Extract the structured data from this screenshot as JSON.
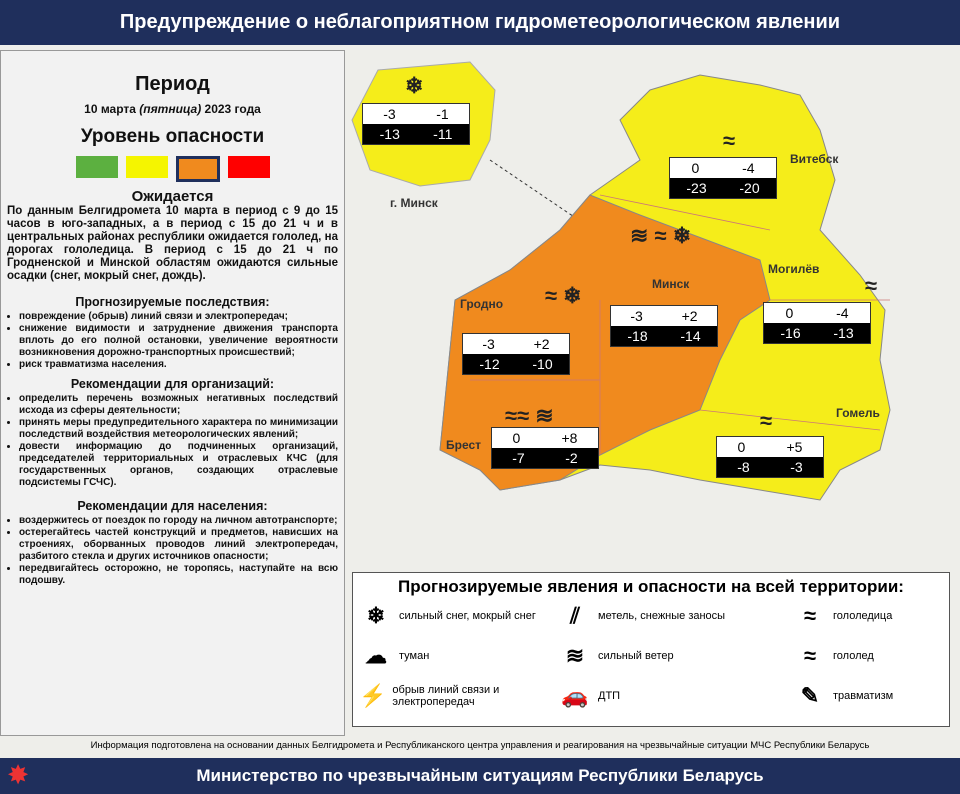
{
  "header": {
    "title": "Предупреждение о неблагоприятном гидрометеорологическом явлении"
  },
  "period": {
    "heading": "Период",
    "date_parts": [
      "10 марта ",
      "(пятница)",
      " 2023 года"
    ]
  },
  "danger_level": {
    "heading": "Уровень опасности"
  },
  "expected": {
    "heading": "Ожидается",
    "text": "По данным Белгидромета 10 марта в период с 9 до 15 часов в юго-западных, а в период с 15 до 21 ч и в центральных районах республики ожидается гололед, на дорогах гололедица. В период с 15 до 21 ч по Гродненской и Минской областям ожидаются сильные осадки (снег, мокрый снег, дождь)."
  },
  "consequences": {
    "heading": "Прогнозируемые последствия:",
    "items": [
      "повреждение (обрыв) линий связи и электропередач;",
      "снижение видимости и затруднение движения транспорта вплоть до его полной остановки, увеличение вероятности возникновения дорожно-транспортных происшествий;",
      "риск травматизма населения."
    ]
  },
  "organizations": {
    "heading": "Рекомендации для организаций:",
    "items": [
      "определить перечень возможных негативных последствий исхода из сферы деятельности;",
      "принять меры предупредительного характера по минимизации последствий воздействия метеорологических явлений;",
      "довести информацию до подчиненных организаций, председателей территориальных и отраслевых КЧС (для государственных органов, создающих отраслевые подсистемы ГСЧС)."
    ]
  },
  "population": {
    "heading": "Рекомендации для населения:",
    "items": [
      "воздержитесь от поездок по городу на личном автотранспорте;",
      "остерегайтесь частей конструкций и предметов, нависших на строениях, оборванных проводов линий электропередач, разбитого стекла и других источников опасности;",
      "передвигайтесь осторожно, не торопясь, наступайте на всю подошву."
    ]
  },
  "map": {
    "cities": [
      "г. Минск",
      "Витебск",
      "Минск",
      "Могилёв",
      "Гродно",
      "Гомель",
      "Брест"
    ],
    "temperatures": [
      {
        "top": [
          "-3",
          "-1"
        ],
        "bottom": [
          "-13",
          "-11"
        ]
      },
      {
        "top": [
          "0",
          "-4"
        ],
        "bottom": [
          "-23",
          "-20"
        ]
      },
      {
        "top": [
          "-3",
          "+2"
        ],
        "bottom": [
          "-18",
          "-14"
        ]
      },
      {
        "top": [
          "0",
          "-4"
        ],
        "bottom": [
          "-16",
          "-13"
        ]
      },
      {
        "top": [
          "-3",
          "+2"
        ],
        "bottom": [
          "-12",
          "-10"
        ]
      },
      {
        "top": [
          "0",
          "+8"
        ],
        "bottom": [
          "-7",
          "-2"
        ]
      },
      {
        "top": [
          "0",
          "+5"
        ],
        "bottom": [
          "-8",
          "-3"
        ]
      }
    ]
  },
  "legend": {
    "heading": "Прогнозируемые явления и опасности на всей территории:",
    "items": [
      "сильный снег, мокрый снег",
      "метель, снежные заносы",
      "гололедица",
      "туман",
      "сильный ветер",
      "гололед",
      "обрыв линий связи и электропередач",
      "ДТП",
      "травматизм"
    ]
  },
  "footer": {
    "note": "Информация подготовлена на основании данных Белгидромета и Республиканского центра управления и реагирования на чрезвычайные ситуации МЧС Республики Беларусь",
    "ministry": "Министерство по чрезвычайным ситуациям Республики Беларусь"
  }
}
